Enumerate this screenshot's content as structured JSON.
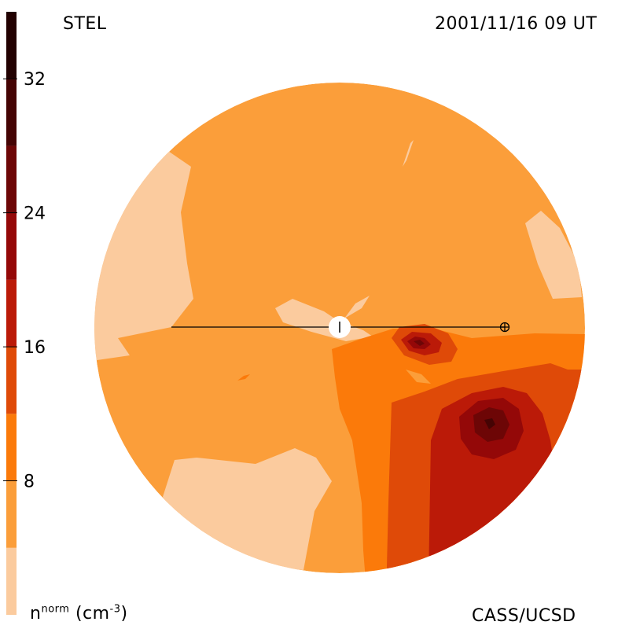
{
  "header": {
    "left": "STEL",
    "right": "2001/11/16 09 UT"
  },
  "footer": {
    "credit": "CASS/UCSD"
  },
  "colorbar": {
    "unit_base": "n",
    "unit_sup": "norm",
    "unit_paren": "(cm",
    "unit_exp": "-3",
    "unit_close": ")",
    "ticks": [
      "32",
      "24",
      "16",
      "8"
    ],
    "tick_values": [
      32,
      24,
      16,
      8
    ],
    "range": [
      0,
      36
    ],
    "levels": [
      {
        "from": 0,
        "to": 4,
        "color": "#fbcb9e"
      },
      {
        "from": 4,
        "to": 8,
        "color": "#fb9e3a"
      },
      {
        "from": 8,
        "to": 12,
        "color": "#fb7a0a"
      },
      {
        "from": 12,
        "to": 16,
        "color": "#df4a08"
      },
      {
        "from": 16,
        "to": 20,
        "color": "#bb1a08"
      },
      {
        "from": 20,
        "to": 24,
        "color": "#940808"
      },
      {
        "from": 24,
        "to": 28,
        "color": "#6d0606"
      },
      {
        "from": 28,
        "to": 32,
        "color": "#450404"
      },
      {
        "from": 32,
        "to": 36,
        "color": "#220101"
      }
    ]
  },
  "chart_data": {
    "type": "heatmap",
    "title": "STEL",
    "subtitle": "2001/11/16 09 UT",
    "colorbar_label": "n^norm (cm^-3)",
    "colorbar_ticks": [
      8,
      16,
      24,
      32
    ],
    "colorbar_range": [
      0,
      36
    ],
    "level_step": 4,
    "features": [
      {
        "feature": "sun",
        "symbol": "circle-with-tick"
      },
      {
        "feature": "earth",
        "symbol": "circled-plus"
      },
      {
        "feature": "sun-earth line",
        "symbol": "line"
      },
      {
        "feature": "density enhancement west of earth-line (upper)",
        "peak_level": 28
      },
      {
        "feature": "density enhancement south-west (lower right)",
        "peak_level": 32
      }
    ]
  },
  "colors": {
    "background": "#ffffff",
    "sun": "#ffffff",
    "line": "#000000"
  }
}
